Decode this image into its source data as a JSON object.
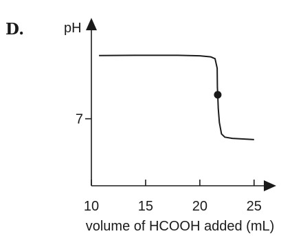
{
  "chart_data": {
    "type": "line",
    "panel_label": "D.",
    "ylabel": "pH",
    "xlabel": "volume of HCOOH added (mL)",
    "xlim": [
      10,
      25.9
    ],
    "x_ticks": [
      10,
      15,
      20,
      25
    ],
    "x_tick_labels": [
      "10",
      "15",
      "20",
      "25"
    ],
    "y_ticks": [
      7
    ],
    "y_tick_labels": [
      "7"
    ],
    "ylim": [
      1.7,
      14
    ],
    "grid": false,
    "series": [
      {
        "points": [
          [
            10.7,
            12
          ],
          [
            14,
            12.02
          ],
          [
            18,
            12.02
          ],
          [
            20,
            11.98
          ],
          [
            21,
            11.9
          ],
          [
            21.4,
            11.75
          ],
          [
            21.6,
            11.0
          ],
          [
            21.62,
            9.5
          ],
          [
            21.65,
            8.9
          ],
          [
            21.7,
            7.8
          ],
          [
            21.8,
            6.7
          ],
          [
            22.0,
            5.8
          ],
          [
            22.3,
            5.55
          ],
          [
            23,
            5.45
          ],
          [
            24,
            5.4
          ],
          [
            25,
            5.35
          ]
        ]
      }
    ],
    "marker": {
      "x": 21.65,
      "y": 8.9
    }
  }
}
